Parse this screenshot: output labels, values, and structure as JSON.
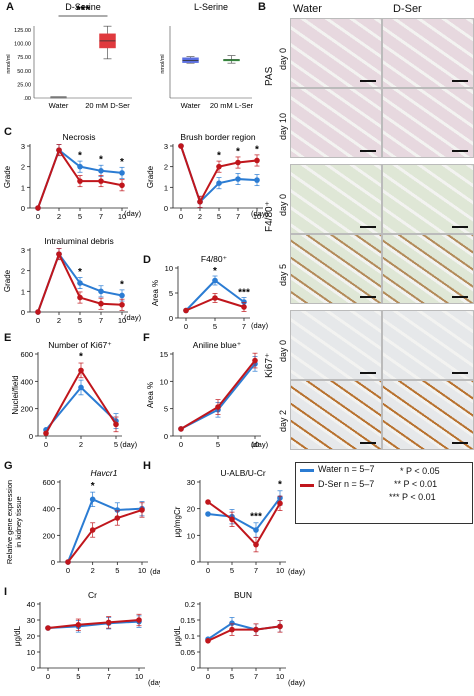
{
  "labels": {
    "A": "A",
    "B": "B",
    "C": "C",
    "D": "D",
    "E": "E",
    "F": "F",
    "G": "G",
    "H": "H",
    "I": "I"
  },
  "colors": {
    "water": "#2b7cd3",
    "dser": "#c0161c"
  },
  "panel_b": {
    "col_water": "Water",
    "col_dser": "D-Ser",
    "groups": [
      {
        "stain": "PAS",
        "rows": [
          "day 0",
          "day 10"
        ],
        "tint": "#e7d8df",
        "cell": "#d8b7c8"
      },
      {
        "stain": "F4/80⁺",
        "rows": [
          "day 0",
          "day 5"
        ],
        "tint": "#dfe7d6",
        "cell": "#b38b5a"
      },
      {
        "stain": "Ki67⁺",
        "rows": [
          "day 0",
          "day 2"
        ],
        "tint": "#e6e8ea",
        "cell": "#b8722f"
      }
    ]
  },
  "legend": {
    "water": "Water n = 5–7",
    "dser": "D-Ser n = 5–7",
    "sig1": "* P < 0.05",
    "sig2": "** P < 0.01",
    "sig3": "*** P < 0.01"
  },
  "chart_data": [
    {
      "id": "A1",
      "type": "box",
      "title": "D-Serine",
      "ylabel": "nmol/ml",
      "yticks": [
        "125.00",
        "100.00",
        "75.00",
        "50.00",
        "25.00",
        ".00"
      ],
      "ylim": [
        0,
        125
      ],
      "categories": [
        "Water",
        "20 mM D-Ser"
      ],
      "boxes": [
        {
          "min": 2,
          "q1": 2,
          "median": 2,
          "q3": 2,
          "max": 2
        },
        {
          "min": 72,
          "q1": 92,
          "median": 105,
          "q3": 118,
          "max": 132
        }
      ],
      "annotation": "***"
    },
    {
      "id": "A2",
      "type": "box",
      "title": "L-Serine",
      "ylabel": "nmol/ml",
      "categories": [
        "Water",
        "20 mM L-Ser"
      ],
      "ylim": [
        0,
        125
      ],
      "boxes": [
        {
          "min": 64,
          "q1": 65,
          "median": 69,
          "q3": 74,
          "max": 76
        },
        {
          "min": 64,
          "q1": 69,
          "median": 70,
          "q3": 71,
          "max": 78
        }
      ]
    },
    {
      "id": "C1",
      "type": "line",
      "title": "Necrosis",
      "ylabel": "Grade",
      "yticks": [
        "0",
        "1",
        "2",
        "3"
      ],
      "ylim": [
        0,
        3
      ],
      "x": [
        0,
        2,
        5,
        7,
        10
      ],
      "xticks": [
        "0",
        "2",
        "5",
        "7",
        "10"
      ],
      "xunit": "(day)",
      "series": [
        {
          "name": "Water",
          "values": [
            0,
            2.8,
            2.0,
            1.8,
            1.7
          ]
        },
        {
          "name": "D-Ser",
          "values": [
            0,
            2.8,
            1.3,
            1.3,
            1.1
          ]
        }
      ],
      "stars": [
        {
          "x": 5,
          "text": "*"
        },
        {
          "x": 7,
          "text": "*"
        },
        {
          "x": 10,
          "text": "*"
        }
      ]
    },
    {
      "id": "C2",
      "type": "line",
      "title": "Brush border region",
      "ylabel": "Grade",
      "yticks": [
        "0",
        "1",
        "2",
        "3"
      ],
      "ylim": [
        0,
        3
      ],
      "x": [
        0,
        2,
        5,
        7,
        10
      ],
      "xticks": [
        "0",
        "2",
        "5",
        "7",
        "10"
      ],
      "xunit": "(day)",
      "series": [
        {
          "name": "Water",
          "values": [
            3,
            0.3,
            1.2,
            1.4,
            1.35
          ]
        },
        {
          "name": "D-Ser",
          "values": [
            3,
            0.3,
            2.0,
            2.2,
            2.3
          ]
        }
      ],
      "stars": [
        {
          "x": 5,
          "text": "*"
        },
        {
          "x": 7,
          "text": "*"
        },
        {
          "x": 10,
          "text": "*"
        }
      ]
    },
    {
      "id": "C3",
      "type": "line",
      "title": "Intraluminal debris",
      "ylabel": "Grade",
      "yticks": [
        "0",
        "1",
        "2",
        "3"
      ],
      "ylim": [
        0,
        3
      ],
      "x": [
        0,
        2,
        5,
        7,
        10
      ],
      "xticks": [
        "0",
        "2",
        "5",
        "7",
        "10"
      ],
      "xunit": "(day)",
      "series": [
        {
          "name": "Water",
          "values": [
            0,
            2.8,
            1.4,
            1.0,
            0.8
          ]
        },
        {
          "name": "D-Ser",
          "values": [
            0,
            2.8,
            0.7,
            0.4,
            0.35
          ]
        }
      ],
      "stars": [
        {
          "x": 5,
          "text": "*"
        },
        {
          "x": 10,
          "text": "*"
        }
      ]
    },
    {
      "id": "D",
      "type": "line",
      "title": "F4/80⁺",
      "ylabel": "Area %",
      "yticks": [
        "0",
        "5",
        "10"
      ],
      "ylim": [
        0,
        10
      ],
      "x": [
        0,
        5,
        7
      ],
      "xticks": [
        "0",
        "5",
        "7"
      ],
      "xunit": "(day)",
      "series": [
        {
          "name": "Water",
          "values": [
            1.5,
            7.5,
            3.2
          ]
        },
        {
          "name": "D-Ser",
          "values": [
            1.5,
            4.0,
            2.2
          ]
        }
      ],
      "stars": [
        {
          "x": 5,
          "text": "*"
        },
        {
          "x": 7,
          "text": "***"
        }
      ]
    },
    {
      "id": "E",
      "type": "line",
      "title": "Number of Ki67⁺",
      "ylabel": "Nuclei/field",
      "yticks": [
        "0",
        "200",
        "400",
        "600"
      ],
      "ylim": [
        0,
        600
      ],
      "x": [
        0,
        2,
        5
      ],
      "xticks": [
        "0",
        "2",
        "5"
      ],
      "xunit": "(day)",
      "series": [
        {
          "name": "Water",
          "values": [
            45,
            355,
            110
          ]
        },
        {
          "name": "D-Ser",
          "values": [
            20,
            480,
            85
          ]
        }
      ],
      "stars": [
        {
          "x": 2,
          "text": "*"
        }
      ]
    },
    {
      "id": "F",
      "type": "line",
      "title": "Aniline blue⁺",
      "ylabel": "Area %",
      "yticks": [
        "0",
        "5",
        "10",
        "15"
      ],
      "ylim": [
        0,
        15
      ],
      "x": [
        0,
        5,
        10
      ],
      "xticks": [
        "0",
        "5",
        "10"
      ],
      "xunit": "(day)",
      "series": [
        {
          "name": "Water",
          "values": [
            1.3,
            4.8,
            13.2
          ]
        },
        {
          "name": "D-Ser",
          "values": [
            1.3,
            5.3,
            13.8
          ]
        }
      ],
      "stars": []
    },
    {
      "id": "G",
      "type": "line",
      "title": "Havcr1",
      "ylabel": "Relative gene expression in kidney tissue",
      "yticks": [
        "0",
        "200",
        "400",
        "600"
      ],
      "ylim": [
        0,
        600
      ],
      "x": [
        0,
        2,
        5,
        10
      ],
      "xticks": [
        "0",
        "2",
        "5",
        "10"
      ],
      "xunit": "(day)",
      "series": [
        {
          "name": "Water",
          "values": [
            0,
            470,
            390,
            400
          ]
        },
        {
          "name": "D-Ser",
          "values": [
            0,
            240,
            330,
            390
          ]
        }
      ],
      "stars": [
        {
          "x": 2,
          "text": "*"
        }
      ]
    },
    {
      "id": "H",
      "type": "line",
      "title": "U-ALB/U-Cr",
      "ylabel": "μg/mgCr",
      "yticks": [
        "0",
        "10",
        "20",
        "30"
      ],
      "ylim": [
        0,
        30
      ],
      "x": [
        0,
        5,
        7,
        10
      ],
      "xticks": [
        "0",
        "5",
        "7",
        "10"
      ],
      "xunit": "(day)",
      "series": [
        {
          "name": "Water",
          "values": [
            18,
            17,
            12,
            24
          ]
        },
        {
          "name": "D-Ser",
          "values": [
            22.5,
            16,
            6.5,
            22
          ]
        }
      ],
      "stars": [
        {
          "x": 7,
          "text": "***"
        },
        {
          "x": 10,
          "text": "*"
        }
      ]
    },
    {
      "id": "I1",
      "type": "line",
      "title": "Cr",
      "ylabel": "μg/dL",
      "yticks": [
        "0",
        "10",
        "20",
        "30",
        "40"
      ],
      "ylim": [
        0,
        40
      ],
      "x": [
        0,
        5,
        7,
        10
      ],
      "xticks": [
        "0",
        "5",
        "7",
        "10"
      ],
      "xunit": "(day)",
      "series": [
        {
          "name": "Water",
          "values": [
            25,
            26,
            28,
            29
          ]
        },
        {
          "name": "D-Ser",
          "values": [
            25,
            27,
            28.5,
            30
          ]
        }
      ],
      "stars": []
    },
    {
      "id": "I2",
      "type": "line",
      "title": "BUN",
      "ylabel": "μg/dL",
      "yticks": [
        "0",
        "0.05",
        "0.1",
        "0.15",
        "0.2"
      ],
      "ylim": [
        0,
        0.2
      ],
      "x": [
        0,
        5,
        7,
        10
      ],
      "xticks": [
        "0",
        "5",
        "7",
        "10"
      ],
      "xunit": "(day)",
      "series": [
        {
          "name": "Water",
          "values": [
            0.09,
            0.14,
            0.12,
            0.13
          ]
        },
        {
          "name": "D-Ser",
          "values": [
            0.085,
            0.12,
            0.12,
            0.13
          ]
        }
      ],
      "stars": []
    }
  ]
}
